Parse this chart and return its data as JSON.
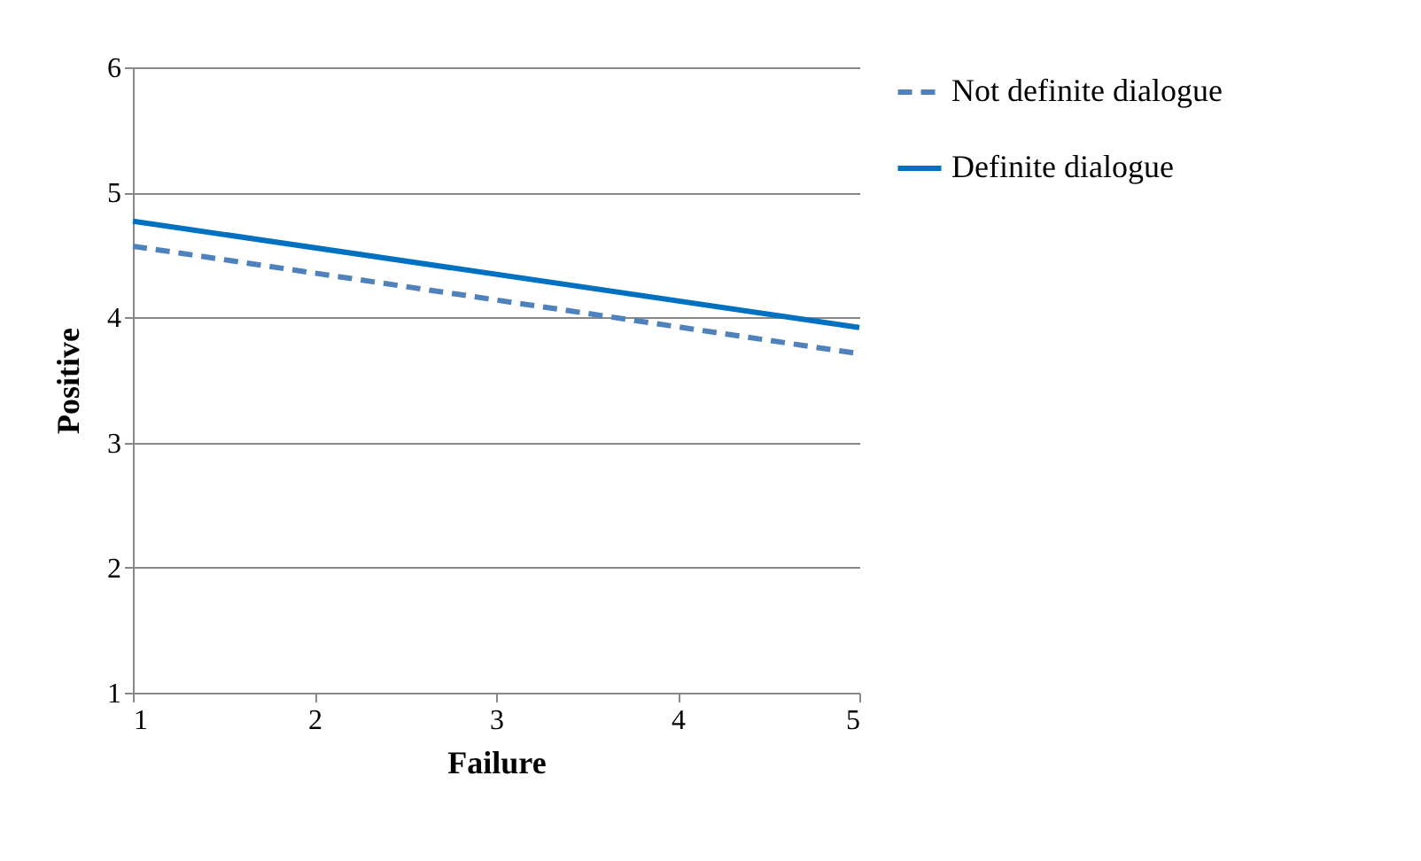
{
  "chart_data": {
    "type": "line",
    "xlabel": "Failure",
    "ylabel": "Positive",
    "x": [
      1,
      5
    ],
    "series": [
      {
        "name": "Not definite dialogue",
        "color": "#4f81bd",
        "line_style": "dashed",
        "values": [
          4.57,
          3.71
        ]
      },
      {
        "name": "Definite dialogue",
        "color": "#0070c0",
        "line_style": "solid",
        "values": [
          4.77,
          3.92
        ]
      }
    ],
    "xlim": [
      1,
      5
    ],
    "xticks": [
      1,
      2,
      3,
      4,
      5
    ],
    "ylim": [
      1,
      6
    ],
    "yticks": [
      1,
      2,
      3,
      4,
      5,
      6
    ],
    "grid": "y",
    "legend": "right",
    "marker": "none"
  }
}
